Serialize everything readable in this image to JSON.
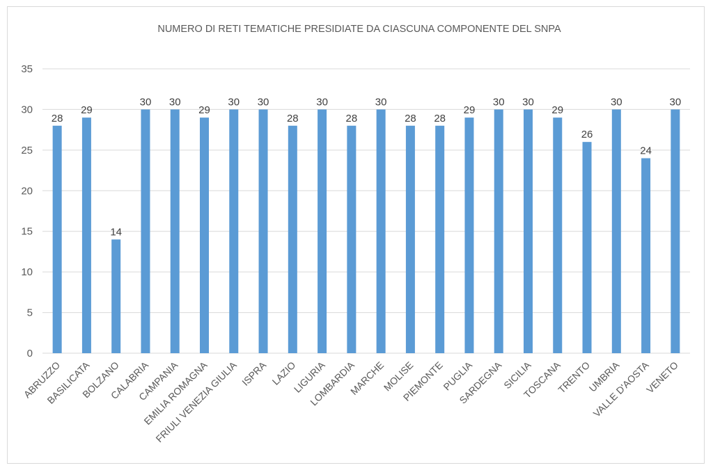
{
  "chart_data": {
    "type": "bar",
    "title": "NUMERO DI RETI TEMATICHE PRESIDIATE DA CIASCUNA COMPONENTE DEL SNPA",
    "categories": [
      "ABRUZZO",
      "BASILICATA",
      "BOLZANO",
      "CALABRIA",
      "CAMPANIA",
      "EMILIA ROMAGNA",
      "FRIULI VENEZIA GIULIA",
      "ISPRA",
      "LAZIO",
      "LIGURIA",
      "LOMBARDIA",
      "MARCHE",
      "MOLISE",
      "PIEMONTE",
      "PUGLIA",
      "SARDEGNA",
      "SICILIA",
      "TOSCANA",
      "TRENTO",
      "UMBRIA",
      "VALLE D'AOSTA",
      "VENETO"
    ],
    "values": [
      28,
      29,
      14,
      30,
      30,
      29,
      30,
      30,
      28,
      30,
      28,
      30,
      28,
      28,
      29,
      30,
      30,
      29,
      26,
      30,
      24,
      30
    ],
    "data_labels": [
      "28",
      "29",
      "14",
      "30",
      "30",
      "29",
      "30",
      "30",
      "28",
      "30",
      "28",
      "30",
      "28",
      "28",
      "29",
      "30",
      "30",
      "29",
      "26",
      "30",
      "24",
      "30"
    ],
    "yticks": [
      "0",
      "5",
      "10",
      "15",
      "20",
      "25",
      "30",
      "35"
    ],
    "ylim": [
      0,
      35
    ],
    "xlabel": "",
    "ylabel": "",
    "grid": true,
    "legend": "none",
    "colors": {
      "bar": "#5b9bd5",
      "grid": "#d9d9d9",
      "text": "#595959",
      "label": "#404040"
    }
  }
}
